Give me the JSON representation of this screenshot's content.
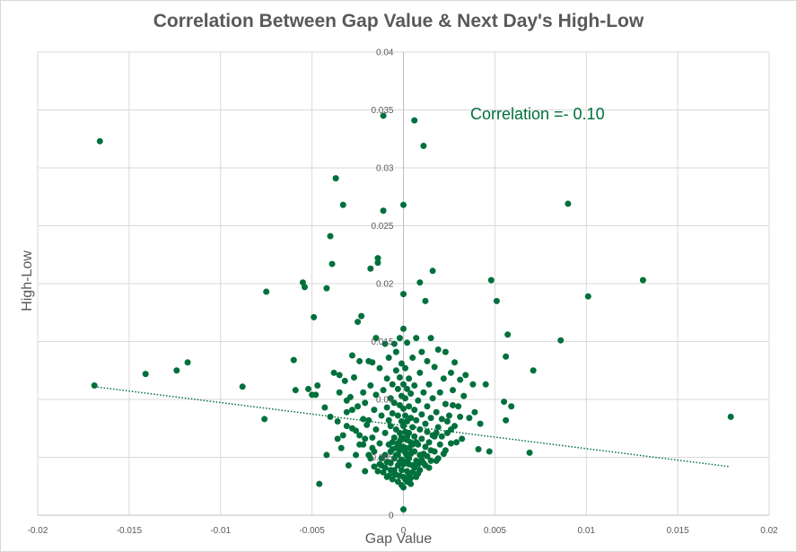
{
  "chart_data": {
    "type": "scatter",
    "title": "Correlation Between Gap Value & Next Day's High-Low",
    "xlabel": "Gap Value",
    "ylabel": "High-Low",
    "xlim": [
      -0.02,
      0.02
    ],
    "ylim": [
      0,
      0.04
    ],
    "x_ticks": [
      "-0.02",
      "-0.015",
      "-0.01",
      "-0.005",
      "0",
      "0.005",
      "0.01",
      "0.015",
      "0.02"
    ],
    "y_ticks": [
      "0",
      "0.005",
      "0.01",
      "0.015",
      "0.02",
      "0.025",
      "0.03",
      "0.035",
      "0.04"
    ],
    "grid": true,
    "annotation": "Correlation =- 0.10",
    "marker_color": "#00703c",
    "trendline": {
      "style": "dotted",
      "from": [
        -0.0169,
        0.0111
      ],
      "to": [
        0.0178,
        0.0042
      ]
    },
    "points": [
      [
        -0.0166,
        0.0323
      ],
      [
        -0.0169,
        0.0112
      ],
      [
        -0.0141,
        0.0122
      ],
      [
        -0.0124,
        0.0125
      ],
      [
        -0.0118,
        0.0132
      ],
      [
        -0.0088,
        0.0111
      ],
      [
        -0.0076,
        0.0083
      ],
      [
        -0.0075,
        0.0193
      ],
      [
        -0.006,
        0.0134
      ],
      [
        -0.0059,
        0.0108
      ],
      [
        -0.0055,
        0.0201
      ],
      [
        -0.0054,
        0.0197
      ],
      [
        -0.0052,
        0.0109
      ],
      [
        -0.005,
        0.0104
      ],
      [
        -0.0049,
        0.0171
      ],
      [
        -0.0048,
        0.0104
      ],
      [
        -0.0047,
        0.0112
      ],
      [
        -0.0046,
        0.0027
      ],
      [
        -0.0043,
        0.0093
      ],
      [
        -0.0042,
        0.0052
      ],
      [
        -0.0042,
        0.0196
      ],
      [
        -0.004,
        0.0085
      ],
      [
        -0.004,
        0.0241
      ],
      [
        -0.0039,
        0.0217
      ],
      [
        -0.0038,
        0.0123
      ],
      [
        -0.0037,
        0.0291
      ],
      [
        -0.0036,
        0.0066
      ],
      [
        -0.0035,
        0.0106
      ],
      [
        -0.0035,
        0.0121
      ],
      [
        -0.0034,
        0.0058
      ],
      [
        -0.0033,
        0.0268
      ],
      [
        -0.0032,
        0.0116
      ],
      [
        -0.0031,
        0.0089
      ],
      [
        -0.0031,
        0.0077
      ],
      [
        -0.003,
        0.0043
      ],
      [
        -0.0029,
        0.0102
      ],
      [
        -0.0028,
        0.0075
      ],
      [
        -0.0028,
        0.0138
      ],
      [
        -0.0027,
        0.0119
      ],
      [
        -0.0026,
        0.0052
      ],
      [
        -0.0025,
        0.0167
      ],
      [
        -0.0025,
        0.0094
      ],
      [
        -0.0024,
        0.0069
      ],
      [
        -0.0024,
        0.0133
      ],
      [
        -0.0023,
        0.0172
      ],
      [
        -0.0022,
        0.0106
      ],
      [
        -0.0022,
        0.0061
      ],
      [
        -0.0021,
        0.0097
      ],
      [
        -0.0021,
        0.0038
      ],
      [
        -0.0019,
        0.0133
      ],
      [
        -0.0019,
        0.0082
      ],
      [
        -0.0018,
        0.0213
      ],
      [
        -0.0018,
        0.0112
      ],
      [
        -0.0018,
        0.0049
      ],
      [
        -0.0017,
        0.0067
      ],
      [
        -0.0017,
        0.0132
      ],
      [
        -0.0016,
        0.0091
      ],
      [
        -0.0016,
        0.0055
      ],
      [
        -0.0015,
        0.0104
      ],
      [
        -0.0015,
        0.0074
      ],
      [
        -0.0015,
        0.0153
      ],
      [
        -0.0014,
        0.0222
      ],
      [
        -0.0014,
        0.0218
      ],
      [
        -0.0013,
        0.0062
      ],
      [
        -0.0013,
        0.0127
      ],
      [
        -0.0012,
        0.0086
      ],
      [
        -0.0012,
        0.0043
      ],
      [
        -0.0011,
        0.0263
      ],
      [
        -0.0011,
        0.0345
      ],
      [
        -0.0011,
        0.0108
      ],
      [
        -0.001,
        0.0071
      ],
      [
        -0.001,
        0.0052
      ],
      [
        -0.001,
        0.0148
      ],
      [
        -0.0009,
        0.0093
      ],
      [
        -0.0009,
        0.0118
      ],
      [
        -0.0009,
        0.0033
      ],
      [
        -0.0008,
        0.0082
      ],
      [
        -0.0008,
        0.0061
      ],
      [
        -0.0008,
        0.0136
      ],
      [
        -0.0007,
        0.0101
      ],
      [
        -0.0007,
        0.0045
      ],
      [
        -0.0007,
        0.0077
      ],
      [
        -0.0006,
        0.0057
      ],
      [
        -0.0006,
        0.0113
      ],
      [
        -0.0006,
        0.0088
      ],
      [
        -0.0005,
        0.0148
      ],
      [
        -0.0005,
        0.0067
      ],
      [
        -0.0005,
        0.0039
      ],
      [
        -0.0005,
        0.0097
      ],
      [
        -0.0004,
        0.0125
      ],
      [
        -0.0004,
        0.0052
      ],
      [
        -0.0004,
        0.0074
      ],
      [
        -0.0004,
        0.0141
      ],
      [
        -0.0003,
        0.0086
      ],
      [
        -0.0003,
        0.0062
      ],
      [
        -0.0003,
        0.0109
      ],
      [
        -0.0003,
        0.0043
      ],
      [
        -0.0002,
        0.0153
      ],
      [
        -0.0002,
        0.0071
      ],
      [
        -0.0002,
        0.0095
      ],
      [
        -0.0002,
        0.0056
      ],
      [
        -0.0002,
        0.0119
      ],
      [
        -0.0001,
        0.0081
      ],
      [
        -0.0001,
        0.0048
      ],
      [
        -0.0001,
        0.0103
      ],
      [
        -0.0001,
        0.0067
      ],
      [
        -0.0001,
        0.0131
      ],
      [
        -0.0001,
        0.0039
      ],
      [
        0.0,
        0.0191
      ],
      [
        0.0,
        0.0268
      ],
      [
        0.0,
        0.0005
      ],
      [
        0.0,
        0.0077
      ],
      [
        0.0,
        0.0059
      ],
      [
        0.0,
        0.0113
      ],
      [
        0.0,
        0.0092
      ],
      [
        0.0,
        0.0044
      ],
      [
        0.0,
        0.0161
      ],
      [
        0.0,
        0.0033
      ],
      [
        0.0001,
        0.0072
      ],
      [
        0.0001,
        0.0101
      ],
      [
        0.0001,
        0.0054
      ],
      [
        0.0001,
        0.0086
      ],
      [
        0.0001,
        0.0127
      ],
      [
        0.0001,
        0.0046
      ],
      [
        0.0002,
        0.0065
      ],
      [
        0.0002,
        0.0109
      ],
      [
        0.0002,
        0.0038
      ],
      [
        0.0002,
        0.0081
      ],
      [
        0.0002,
        0.0149
      ],
      [
        0.0003,
        0.0058
      ],
      [
        0.0003,
        0.0094
      ],
      [
        0.0003,
        0.0071
      ],
      [
        0.0003,
        0.0049
      ],
      [
        0.0003,
        0.0118
      ],
      [
        0.0004,
        0.0027
      ],
      [
        0.0004,
        0.0084
      ],
      [
        0.0004,
        0.0063
      ],
      [
        0.0004,
        0.0105
      ],
      [
        0.0005,
        0.0043
      ],
      [
        0.0005,
        0.0076
      ],
      [
        0.0005,
        0.0136
      ],
      [
        0.0005,
        0.0055
      ],
      [
        0.0006,
        0.0341
      ],
      [
        0.0006,
        0.0091
      ],
      [
        0.0006,
        0.0068
      ],
      [
        0.0006,
        0.0112
      ],
      [
        0.0007,
        0.0047
      ],
      [
        0.0007,
        0.0082
      ],
      [
        0.0007,
        0.0153
      ],
      [
        0.0008,
        0.0061
      ],
      [
        0.0008,
        0.0099
      ],
      [
        0.0008,
        0.0036
      ],
      [
        0.0009,
        0.0201
      ],
      [
        0.0009,
        0.0074
      ],
      [
        0.0009,
        0.0123
      ],
      [
        0.0009,
        0.0052
      ],
      [
        0.001,
        0.0087
      ],
      [
        0.001,
        0.0141
      ],
      [
        0.001,
        0.0066
      ],
      [
        0.0011,
        0.0319
      ],
      [
        0.0011,
        0.0106
      ],
      [
        0.0011,
        0.0045
      ],
      [
        0.0012,
        0.0079
      ],
      [
        0.0012,
        0.0185
      ],
      [
        0.0012,
        0.0059
      ],
      [
        0.0013,
        0.0133
      ],
      [
        0.0013,
        0.0094
      ],
      [
        0.0013,
        0.0072
      ],
      [
        0.0014,
        0.0041
      ],
      [
        0.0014,
        0.0113
      ],
      [
        0.0015,
        0.0084
      ],
      [
        0.0015,
        0.0153
      ],
      [
        0.0015,
        0.0056
      ],
      [
        0.0016,
        0.0211
      ],
      [
        0.0016,
        0.0101
      ],
      [
        0.0017,
        0.0068
      ],
      [
        0.0017,
        0.0128
      ],
      [
        0.0018,
        0.0089
      ],
      [
        0.0018,
        0.0047
      ],
      [
        0.0019,
        0.0143
      ],
      [
        0.0019,
        0.0076
      ],
      [
        0.002,
        0.0061
      ],
      [
        0.002,
        0.0106
      ],
      [
        0.0021,
        0.0083
      ],
      [
        0.0022,
        0.0118
      ],
      [
        0.0022,
        0.0053
      ],
      [
        0.0023,
        0.0096
      ],
      [
        0.0023,
        0.0141
      ],
      [
        0.0024,
        0.0071
      ],
      [
        0.0025,
        0.0086
      ],
      [
        0.0026,
        0.0123
      ],
      [
        0.0026,
        0.0062
      ],
      [
        0.0027,
        0.0108
      ],
      [
        0.0028,
        0.0077
      ],
      [
        0.0028,
        0.0132
      ],
      [
        0.003,
        0.0094
      ],
      [
        0.0031,
        0.0117
      ],
      [
        0.0032,
        0.0066
      ],
      [
        0.0033,
        0.0103
      ],
      [
        0.0034,
        0.0121
      ],
      [
        0.0036,
        0.0084
      ],
      [
        0.0038,
        0.0113
      ],
      [
        0.0039,
        0.0089
      ],
      [
        0.0041,
        0.0057
      ],
      [
        0.0042,
        0.0079
      ],
      [
        0.0045,
        0.0113
      ],
      [
        0.0047,
        0.0055
      ],
      [
        0.0048,
        0.0203
      ],
      [
        0.0051,
        0.0185
      ],
      [
        0.0055,
        0.0098
      ],
      [
        0.0056,
        0.0082
      ],
      [
        0.0056,
        0.0137
      ],
      [
        0.0057,
        0.0156
      ],
      [
        0.0059,
        0.0094
      ],
      [
        0.0069,
        0.0054
      ],
      [
        0.0071,
        0.0125
      ],
      [
        0.0086,
        0.0151
      ],
      [
        0.009,
        0.0269
      ],
      [
        0.0101,
        0.0189
      ],
      [
        0.0131,
        0.0203
      ],
      [
        0.0179,
        0.0085
      ],
      [
        -0.0006,
        0.0031
      ],
      [
        -0.0005,
        0.0036
      ],
      [
        -0.0004,
        0.0035
      ],
      [
        -0.0003,
        0.0029
      ],
      [
        -0.0002,
        0.0034
      ],
      [
        -0.0001,
        0.0026
      ],
      [
        0.0,
        0.0024
      ],
      [
        0.0001,
        0.0031
      ],
      [
        0.0002,
        0.0029
      ],
      [
        0.0003,
        0.0035
      ],
      [
        0.0004,
        0.0032
      ],
      [
        0.0005,
        0.0037
      ],
      [
        0.0006,
        0.0041
      ],
      [
        0.0007,
        0.0033
      ],
      [
        0.0008,
        0.0044
      ],
      [
        -0.0007,
        0.0039
      ],
      [
        -0.0008,
        0.0034
      ],
      [
        -0.0009,
        0.0046
      ],
      [
        -0.001,
        0.0041
      ],
      [
        -0.0011,
        0.0037
      ],
      [
        -0.0012,
        0.0049
      ],
      [
        -0.0013,
        0.0044
      ],
      [
        -0.0014,
        0.0038
      ],
      [
        0.0009,
        0.0039
      ],
      [
        0.001,
        0.0048
      ],
      [
        0.0011,
        0.0053
      ],
      [
        0.0012,
        0.0043
      ],
      [
        0.0013,
        0.0051
      ],
      [
        -0.0003,
        0.0052
      ],
      [
        -0.0002,
        0.0046
      ],
      [
        -0.0001,
        0.0059
      ],
      [
        0.0001,
        0.0058
      ],
      [
        0.0002,
        0.0051
      ],
      [
        0.0003,
        0.0044
      ],
      [
        -0.0004,
        0.0058
      ],
      [
        -0.0005,
        0.0049
      ],
      [
        0.0004,
        0.0053
      ],
      [
        0.0005,
        0.0061
      ],
      [
        0.0006,
        0.0055
      ],
      [
        -0.0006,
        0.0063
      ],
      [
        -0.0007,
        0.0055
      ],
      [
        0.0,
        0.0066
      ],
      [
        0.0002,
        0.0068
      ],
      [
        -0.0002,
        0.0064
      ],
      [
        0.0007,
        0.0063
      ],
      [
        -0.0016,
        0.0042
      ],
      [
        -0.0017,
        0.0058
      ],
      [
        0.0014,
        0.0063
      ],
      [
        0.0015,
        0.0047
      ],
      [
        0.0016,
        0.0069
      ],
      [
        -0.0019,
        0.0052
      ],
      [
        -0.002,
        0.0078
      ],
      [
        0.0017,
        0.0055
      ],
      [
        0.0018,
        0.0071
      ],
      [
        0.0019,
        0.0049
      ],
      [
        -0.0021,
        0.0066
      ],
      [
        -0.0022,
        0.0083
      ],
      [
        0.0021,
        0.0068
      ],
      [
        0.0023,
        0.0056
      ],
      [
        0.0024,
        0.0081
      ],
      [
        -0.0024,
        0.0061
      ],
      [
        -0.0026,
        0.0073
      ],
      [
        0.0026,
        0.0074
      ],
      [
        0.0027,
        0.0095
      ],
      [
        -0.0028,
        0.0091
      ],
      [
        -0.0031,
        0.0099
      ],
      [
        0.0029,
        0.0063
      ],
      [
        0.0031,
        0.0085
      ],
      [
        -0.0033,
        0.0069
      ],
      [
        -0.0036,
        0.0081
      ]
    ]
  }
}
